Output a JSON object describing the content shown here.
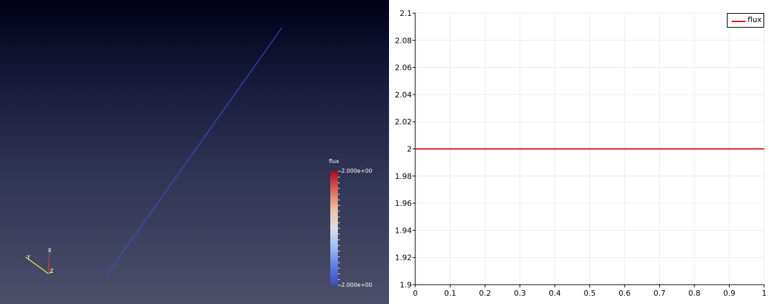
{
  "scalar_bar": {
    "title": "flux",
    "max_label": "2.000e+00",
    "min_label": "2.000e+00",
    "colors": [
      "#b40426",
      "#dd6a53",
      "#f0c0a6",
      "#dcdde2",
      "#9fbcf5",
      "#5b7be6",
      "#3b4cc0"
    ]
  },
  "axes_gizmo": {
    "x_label": "X",
    "y_label": "Y",
    "z_label": "Z"
  },
  "line_color": "#3f50e0",
  "chart_data": {
    "type": "line",
    "x": [
      0,
      0.1,
      0.2,
      0.3,
      0.4,
      0.5,
      0.6,
      0.7,
      0.8,
      0.9,
      1
    ],
    "series": [
      {
        "name": "flux",
        "color": "#d7191c",
        "values": [
          2,
          2,
          2,
          2,
          2,
          2,
          2,
          2,
          2,
          2,
          2
        ]
      }
    ],
    "xlim": [
      0,
      1
    ],
    "ylim": [
      1.9,
      2.1
    ],
    "xticks": [
      "0",
      "0.1",
      "0.2",
      "0.3",
      "0.4",
      "0.5",
      "0.6",
      "0.7",
      "0.8",
      "0.9",
      "1"
    ],
    "yticks": [
      "1.9",
      "1.92",
      "1.94",
      "1.96",
      "1.98",
      "2",
      "2.02",
      "2.04",
      "2.06",
      "2.08",
      "2.1"
    ],
    "grid": true,
    "legend": "top-right"
  }
}
